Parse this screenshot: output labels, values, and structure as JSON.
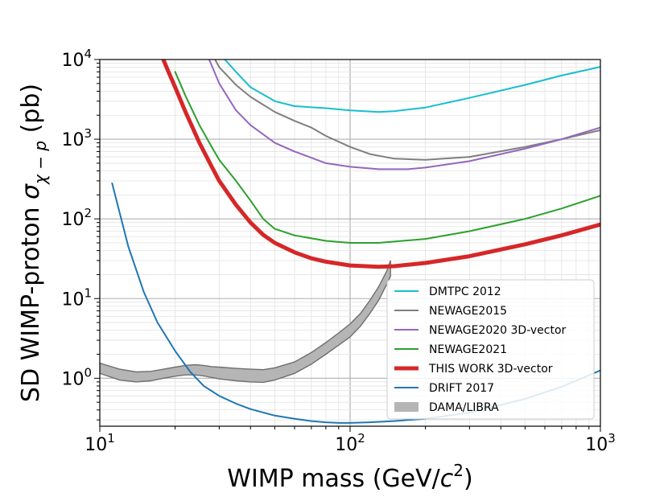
{
  "chart_data": {
    "type": "line",
    "title": "",
    "xlabel": {
      "main": "WIMP mass (GeV/",
      "italic": "c",
      "sup": "2",
      "tail": ")"
    },
    "ylabel": {
      "main": "SD WIMP-proton ",
      "sigma": "σ",
      "sub": "χ − p",
      "tail": " (pb)"
    },
    "xscale": "log",
    "yscale": "log",
    "xlim": [
      10,
      1000
    ],
    "ylim": [
      0.25,
      10000
    ],
    "xticks": [
      {
        "value": 10,
        "base": "10",
        "exp": "1"
      },
      {
        "value": 100,
        "base": "10",
        "exp": "2"
      },
      {
        "value": 1000,
        "base": "10",
        "exp": "3"
      }
    ],
    "yticks": [
      {
        "value": 1,
        "base": "10",
        "exp": "0"
      },
      {
        "value": 10,
        "base": "10",
        "exp": "1"
      },
      {
        "value": 100,
        "base": "10",
        "exp": "2"
      },
      {
        "value": 1000,
        "base": "10",
        "exp": "3"
      },
      {
        "value": 10000,
        "base": "10",
        "exp": "4"
      }
    ],
    "grid": true,
    "legend_position": "lower-right",
    "series": [
      {
        "name": "DMTPC 2012",
        "color": "#17becf",
        "width": 2,
        "x": [
          30,
          35,
          40,
          50,
          60,
          80,
          100,
          130,
          150,
          200,
          300,
          500,
          700,
          1000
        ],
        "y": [
          12000,
          7000,
          4500,
          3000,
          2600,
          2450,
          2300,
          2200,
          2250,
          2500,
          3300,
          4800,
          6300,
          8100
        ]
      },
      {
        "name": "NEWAGE2015",
        "color": "#7f7f7f",
        "width": 2,
        "x": [
          28,
          30,
          35,
          40,
          50,
          60,
          70,
          80,
          100,
          120,
          150,
          200,
          300,
          500,
          700,
          1000
        ],
        "y": [
          12000,
          8000,
          4800,
          3400,
          2200,
          1700,
          1400,
          1100,
          800,
          650,
          570,
          550,
          600,
          800,
          1000,
          1300
        ]
      },
      {
        "name": "NEWAGE2020 3D-vector",
        "color": "#9467bd",
        "width": 2,
        "x": [
          27,
          30,
          35,
          40,
          50,
          60,
          80,
          100,
          130,
          170,
          200,
          300,
          500,
          700,
          1000
        ],
        "y": [
          11000,
          5000,
          2300,
          1500,
          900,
          700,
          500,
          450,
          420,
          420,
          440,
          530,
          760,
          1000,
          1400
        ]
      },
      {
        "name": "NEWAGE2021",
        "color": "#2ca02c",
        "width": 2,
        "x": [
          20,
          22,
          25,
          28,
          30,
          35,
          40,
          45,
          50,
          60,
          80,
          100,
          130,
          200,
          300,
          500,
          700,
          1000
        ],
        "y": [
          7000,
          3500,
          1500,
          800,
          550,
          300,
          170,
          100,
          75,
          62,
          53,
          50,
          50,
          56,
          70,
          100,
          135,
          195
        ]
      },
      {
        "name": "THIS WORK 3D-vector",
        "color": "#d62728",
        "width": 5,
        "x": [
          17.5,
          19,
          20,
          22,
          25,
          28,
          30,
          35,
          40,
          45,
          50,
          60,
          70,
          80,
          100,
          130,
          150,
          200,
          300,
          500,
          700,
          1000
        ],
        "y": [
          12000,
          6500,
          4500,
          2200,
          900,
          450,
          300,
          150,
          90,
          63,
          50,
          38,
          32,
          29,
          26,
          25,
          25.5,
          28,
          34,
          48,
          62,
          85
        ]
      },
      {
        "name": "DRIFT 2017",
        "color": "#1f77b4",
        "width": 2,
        "x": [
          11.2,
          12,
          13,
          15,
          17,
          20,
          23,
          26,
          30,
          35,
          40,
          50,
          60,
          70,
          80,
          90,
          100,
          120,
          150,
          200,
          300,
          500,
          700,
          1000
        ],
        "y": [
          280,
          120,
          45,
          12,
          5,
          2.2,
          1.2,
          0.8,
          0.6,
          0.48,
          0.41,
          0.34,
          0.31,
          0.29,
          0.28,
          0.275,
          0.275,
          0.28,
          0.29,
          0.31,
          0.37,
          0.55,
          0.78,
          1.25
        ]
      },
      {
        "name": "DAMA/LIBRA",
        "color": "#999999",
        "type": "band",
        "x": [
          10,
          12,
          14,
          16,
          18,
          20,
          22,
          24,
          26,
          28,
          30,
          35,
          40,
          45,
          50,
          60,
          70,
          80,
          90,
          100,
          110,
          120,
          130,
          140,
          145
        ],
        "y_low": [
          1.15,
          0.95,
          0.9,
          0.93,
          1.0,
          1.06,
          1.1,
          1.1,
          1.07,
          1.02,
          0.98,
          0.93,
          0.9,
          0.89,
          0.95,
          1.15,
          1.5,
          2.0,
          2.6,
          3.3,
          4.5,
          6.5,
          9.5,
          15,
          19
        ],
        "y_high": [
          1.55,
          1.3,
          1.2,
          1.22,
          1.3,
          1.38,
          1.45,
          1.48,
          1.45,
          1.4,
          1.38,
          1.33,
          1.3,
          1.28,
          1.35,
          1.6,
          2.1,
          2.8,
          3.7,
          4.8,
          6.5,
          9.5,
          14,
          22,
          30
        ]
      }
    ]
  }
}
